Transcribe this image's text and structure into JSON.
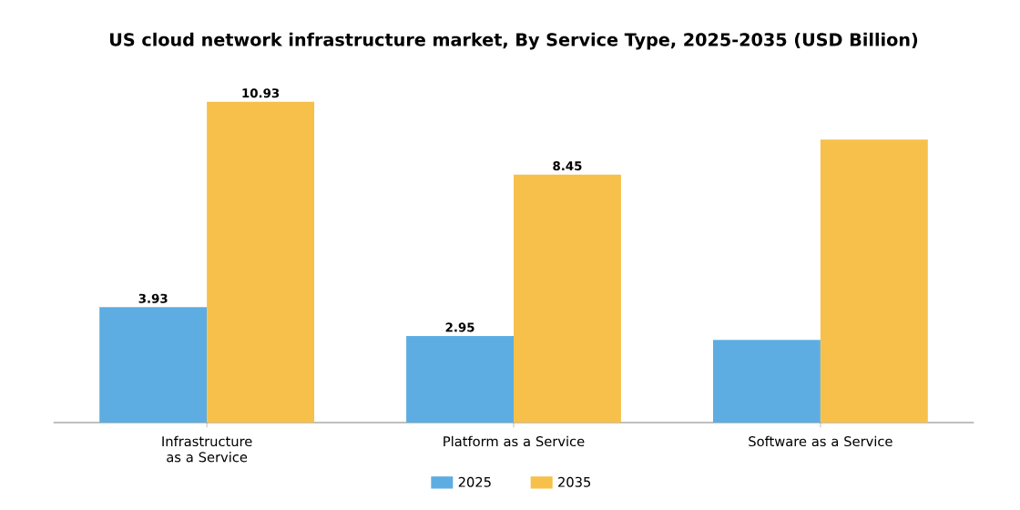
{
  "chart_data": {
    "type": "bar",
    "title": "US cloud network infrastructure market, By Service Type, 2025-2035 (USD Billion)",
    "categories": [
      "Infrastructure as a Service",
      "Platform as a Service",
      "Software as a Service"
    ],
    "series": [
      {
        "name": "2025",
        "color": "#5dade2",
        "values": [
          3.93,
          2.95,
          2.82
        ],
        "value_labels": [
          "3.93",
          "2.95",
          null
        ]
      },
      {
        "name": "2035",
        "color": "#f7c04a",
        "values": [
          10.93,
          8.45,
          9.64
        ],
        "value_labels": [
          "10.93",
          "8.45",
          null
        ]
      }
    ],
    "legend": "bottom"
  }
}
